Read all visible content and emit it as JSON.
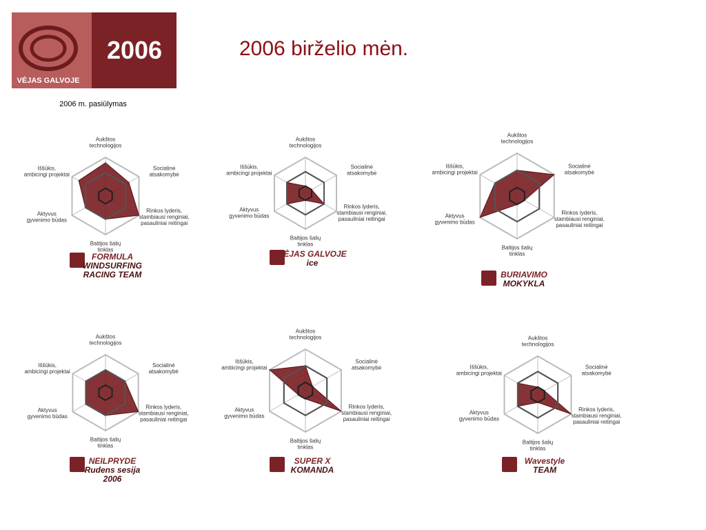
{
  "header": {
    "logo_text": "VĖJAS GALVOJE",
    "logo_year": "2006",
    "title": "2006 birželio mėn.",
    "subtitle": "2006 m. pasiūlymas"
  },
  "chart_data": [
    {
      "type": "radar",
      "categories": [
        [
          "Aukštos",
          "technologijos"
        ],
        [
          "Socialinė",
          "atsakomybė"
        ],
        [
          "Rinkos lyderis,",
          "stambiausi renginiai,",
          "pasauliniai reitingai"
        ],
        [
          "Baltijos šalių",
          "tinklas"
        ],
        [
          "Aktyvus",
          "gyvenimo būdas"
        ],
        [
          "Iššūkis,",
          "ambicingi projektai"
        ]
      ],
      "values": [
        4.3,
        3.5,
        5,
        3,
        3,
        4
      ],
      "color": "#7b2226",
      "ylim": [
        0,
        5
      ],
      "yticks": [
        1,
        3,
        5
      ],
      "caption": [
        "FORMULA",
        "WINDSURFING",
        "RACING TEAM"
      ]
    },
    {
      "type": "radar",
      "categories": [
        [
          "Aukštos",
          "technologijos"
        ],
        [
          "Socialinė",
          "atsakomybė"
        ],
        [
          "Rinkos lyderis,",
          "stambiausi renginiai,",
          "pasauliniai reitingai"
        ],
        [
          "Baltijos šalių",
          "tinklas"
        ],
        [
          "Aktyvus",
          "gyvenimo būdas"
        ],
        [
          "Iššūkis,",
          "ambicingi projektai"
        ]
      ],
      "values": [
        1,
        1,
        3,
        1,
        3,
        3
      ],
      "color": "#7b2226",
      "ylim": [
        0,
        5
      ],
      "yticks": [
        1,
        3,
        5
      ],
      "caption": [
        "VĖJAS GALVOJE",
        "ice"
      ]
    },
    {
      "type": "radar",
      "categories": [
        [
          "Aukštos",
          "technologijos"
        ],
        [
          "Socialinė",
          "atsakomybė"
        ],
        [
          "Rinkos lyderis,",
          "stambiausi renginiai,",
          "pasauliniai reitingai"
        ],
        [
          "Baltijos šalių",
          "tinklas"
        ],
        [
          "Aktyvus",
          "gyvenimo būdas"
        ],
        [
          "Iššūkis,",
          "ambicingi projektai"
        ]
      ],
      "values": [
        3,
        5,
        1,
        1,
        5,
        3
      ],
      "color": "#7b2226",
      "ylim": [
        0,
        5
      ],
      "yticks": [
        1,
        3,
        5
      ],
      "caption": [
        "BURIAVIMO",
        "MOKYKLA"
      ]
    },
    {
      "type": "radar",
      "categories": [
        [
          "Aukštos",
          "technologijos"
        ],
        [
          "Socialinė",
          "atsakomybė"
        ],
        [
          "Rinkos lyderis,",
          "stambiausi renginiai,",
          "pasauliniai reitingai"
        ],
        [
          "Baltijos šalių",
          "tinklas"
        ],
        [
          "Aktyvus",
          "gyvenimo būdas"
        ],
        [
          "Iššūkis,",
          "ambicingi projektai"
        ]
      ],
      "values": [
        3,
        3,
        5,
        3,
        3,
        3
      ],
      "color": "#7b2226",
      "ylim": [
        0,
        5
      ],
      "yticks": [
        1,
        3,
        5
      ],
      "caption": [
        "NEILPRYDE",
        "Rudens sesija",
        "2006"
      ]
    },
    {
      "type": "radar",
      "categories": [
        [
          "Aukštos",
          "technologijos"
        ],
        [
          "Socialinė",
          "atsakomybė"
        ],
        [
          "Rinkos lyderis,",
          "stambiausi renginiai,",
          "pasauliniai reitingai"
        ],
        [
          "Baltijos šalių",
          "tinklas"
        ],
        [
          "Aktyvus",
          "gyvenimo būdas"
        ],
        [
          "Iššūkis,",
          "ambicingi projektai"
        ]
      ],
      "values": [
        3,
        1,
        5,
        1,
        1,
        5
      ],
      "color": "#7b2226",
      "ylim": [
        0,
        5
      ],
      "yticks": [
        1,
        3,
        5
      ],
      "caption": [
        "SUPER X",
        "KOMANDA"
      ]
    },
    {
      "type": "radar",
      "categories": [
        [
          "Aukštos",
          "technologijos"
        ],
        [
          "Socialinė",
          "atsakomybė"
        ],
        [
          "Rinkos lyderis,",
          "stambiausi renginiai,",
          "pasauliniai reitingai"
        ],
        [
          "Baltijos šalių",
          "tinklas"
        ],
        [
          "Aktyvus",
          "gyvenimo būdas"
        ],
        [
          "Iššūkis,",
          "ambicingi projektai"
        ]
      ],
      "values": [
        1,
        1,
        5,
        1,
        3,
        3
      ],
      "color": "#7b2226",
      "ylim": [
        0,
        5
      ],
      "yticks": [
        1,
        3,
        5
      ],
      "caption": [
        "Wavestyle",
        "TEAM"
      ]
    }
  ]
}
